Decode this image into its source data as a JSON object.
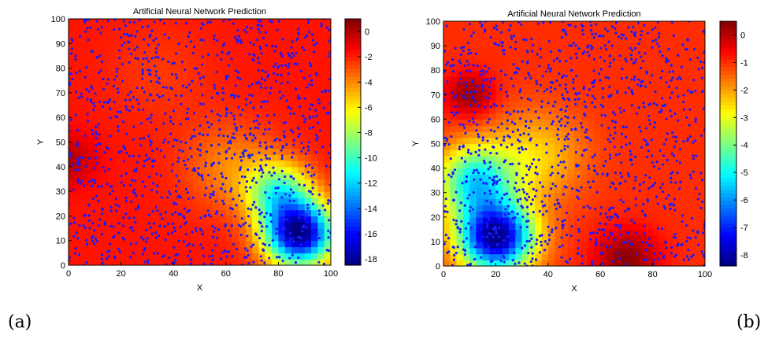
{
  "figure": {
    "caption_left": "(a)",
    "caption_right": "(b)"
  },
  "chart_data": [
    {
      "type": "heatmap",
      "title": "Artificial Neural Network Prediction",
      "xlabel": "X",
      "ylabel": "Y",
      "xlim": [
        0,
        100
      ],
      "ylim": [
        0,
        100
      ],
      "x_ticks": [
        "0",
        "20",
        "40",
        "60",
        "80",
        "100"
      ],
      "y_ticks": [
        "0",
        "10",
        "20",
        "30",
        "40",
        "50",
        "60",
        "70",
        "80",
        "90",
        "100"
      ],
      "colorbar": {
        "min": -18.5,
        "max": 1,
        "ticks": [
          "0",
          "-2",
          "-4",
          "-6",
          "-8",
          "-10",
          "-12",
          "-14",
          "-16",
          "-18"
        ]
      },
      "colormap": "jet",
      "surface_features": [
        {
          "x": 88,
          "y": 13,
          "value": -18.5,
          "radius": 13
        },
        {
          "x": 80,
          "y": 30,
          "value": -9,
          "radius": 12
        },
        {
          "x": 62,
          "y": 40,
          "value": -4,
          "radius": 18
        },
        {
          "x": 0,
          "y": 43,
          "value": 0,
          "radius": 10
        },
        {
          "x": 35,
          "y": 78,
          "value": -2.5,
          "radius": 20
        }
      ],
      "baseline_value": -1.8,
      "overlay_points": {
        "color": "#1a1aff",
        "count": 1200,
        "style": "dot"
      }
    },
    {
      "type": "heatmap",
      "title": "Artificial Neural Network Prediction",
      "xlabel": "X",
      "ylabel": "Y",
      "xlim": [
        0,
        100
      ],
      "ylim": [
        0,
        100
      ],
      "x_ticks": [
        "0",
        "20",
        "40",
        "60",
        "80",
        "100"
      ],
      "y_ticks": [
        "0",
        "10",
        "20",
        "30",
        "40",
        "50",
        "60",
        "70",
        "80",
        "90",
        "100"
      ],
      "colorbar": {
        "min": -8.4,
        "max": 0.5,
        "ticks": [
          "0",
          "-1",
          "-2",
          "-3",
          "-4",
          "-5",
          "-6",
          "-7",
          "-8"
        ]
      },
      "colormap": "jet",
      "surface_features": [
        {
          "x": 20,
          "y": 12,
          "value": -8.4,
          "radius": 14
        },
        {
          "x": 12,
          "y": 35,
          "value": -5,
          "radius": 14
        },
        {
          "x": 35,
          "y": 45,
          "value": -2.5,
          "radius": 18
        },
        {
          "x": 10,
          "y": 70,
          "value": 0.3,
          "radius": 9
        },
        {
          "x": 70,
          "y": 3,
          "value": 0.4,
          "radius": 12
        }
      ],
      "baseline_value": -1.0,
      "overlay_points": {
        "color": "#1a1aff",
        "count": 1200,
        "style": "dot"
      }
    }
  ]
}
